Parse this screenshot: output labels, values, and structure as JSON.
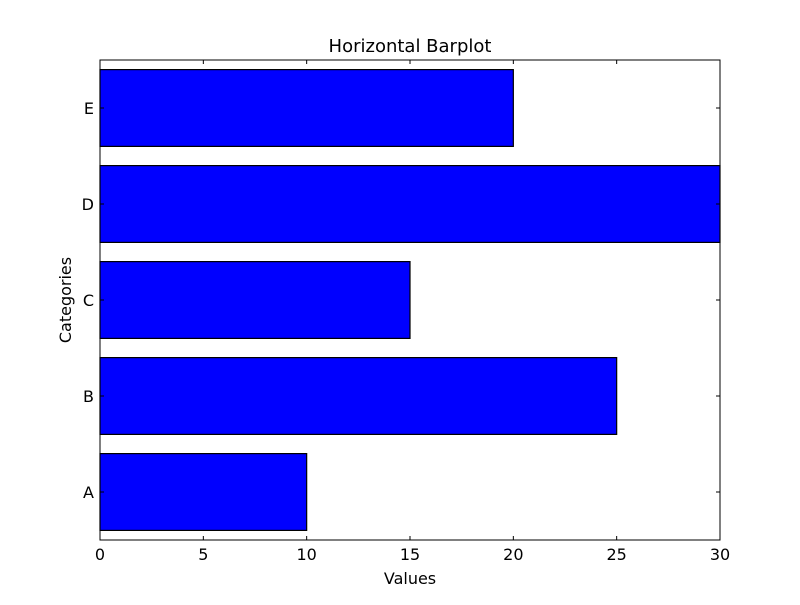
{
  "chart_data": {
    "type": "bar",
    "orientation": "horizontal",
    "title": "Horizontal Barplot",
    "xlabel": "Values",
    "ylabel": "Categories",
    "categories": [
      "A",
      "B",
      "C",
      "D",
      "E"
    ],
    "values": [
      10,
      25,
      15,
      30,
      20
    ],
    "xlim": [
      0,
      30
    ],
    "xticks": [
      0,
      5,
      10,
      15,
      20,
      25,
      30
    ],
    "grid": false,
    "bar_color": "#0000ff",
    "edge_color": "#000000"
  }
}
